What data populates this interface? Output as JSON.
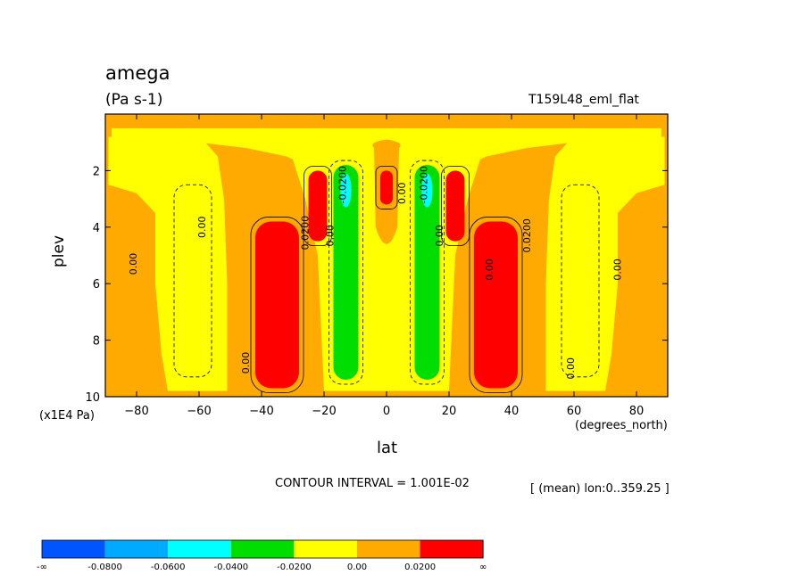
{
  "chart_data": {
    "type": "heatmap",
    "title": "amega",
    "units": "(Pa s-1)",
    "run_label": "T159L48_eml_flat",
    "xlabel": "lat",
    "ylabel": "plev",
    "x_units": "(degrees_north)",
    "y_units": "(x1E4 Pa)",
    "xlim": [
      -90,
      90
    ],
    "ylim": [
      10,
      0
    ],
    "x_ticks": [
      -80,
      -60,
      -40,
      -20,
      0,
      20,
      40,
      60,
      80
    ],
    "y_ticks": [
      2,
      4,
      6,
      8,
      10
    ],
    "contour_interval_text": "CONTOUR INTERVAL = 1.001E-02",
    "averaging_text": "[ (mean) lon:0..359.25 ]",
    "contour_labels": [
      "0.00",
      "0.00",
      "0.00",
      "0.0200",
      "0.00",
      "-0.0200",
      "0.00",
      "-0.0200",
      "0.00",
      "0.00",
      "0.0200",
      "0.00",
      "0.00"
    ],
    "features": [
      {
        "label": "southern subtropical maximum",
        "lat_range": [
          -42,
          -28
        ],
        "plev_range": [
          3.8,
          9.7
        ],
        "value_bin": "0.0200 to inf"
      },
      {
        "label": "southern upper maximum",
        "lat_range": [
          -25,
          -19
        ],
        "plev_range": [
          2.0,
          4.5
        ],
        "value_bin": "0.0200 to inf"
      },
      {
        "label": "southern deep-tropics minimum",
        "lat_range": [
          -17,
          -9
        ],
        "plev_range": [
          1.8,
          9.4
        ],
        "value_bin": "-0.0400 to -0.0200"
      },
      {
        "label": "equatorial maximum",
        "lat_range": [
          -2,
          2
        ],
        "plev_range": [
          2.0,
          3.2
        ],
        "value_bin": "0.0200 to inf"
      },
      {
        "label": "northern deep-tropics minimum",
        "lat_range": [
          9,
          17
        ],
        "plev_range": [
          1.8,
          9.4
        ],
        "value_bin": "-0.0400 to -0.0200"
      },
      {
        "label": "northern upper maximum",
        "lat_range": [
          19,
          25
        ],
        "plev_range": [
          2.0,
          4.5
        ],
        "value_bin": "0.0200 to inf"
      },
      {
        "label": "northern subtropical maximum",
        "lat_range": [
          28,
          42
        ],
        "plev_range": [
          3.8,
          9.7
        ],
        "value_bin": "0.0200 to inf"
      }
    ],
    "colorbar": {
      "labels": [
        "-∞",
        "-0.0800",
        "-0.0600",
        "-0.0400",
        "-0.0200",
        "0.00",
        "0.0200",
        "∞"
      ],
      "colors": [
        "#0055ff",
        "#00aaff",
        "#00ffff",
        "#00dd00",
        "#ffff00",
        "#ffaa00",
        "#ff0000"
      ]
    }
  }
}
